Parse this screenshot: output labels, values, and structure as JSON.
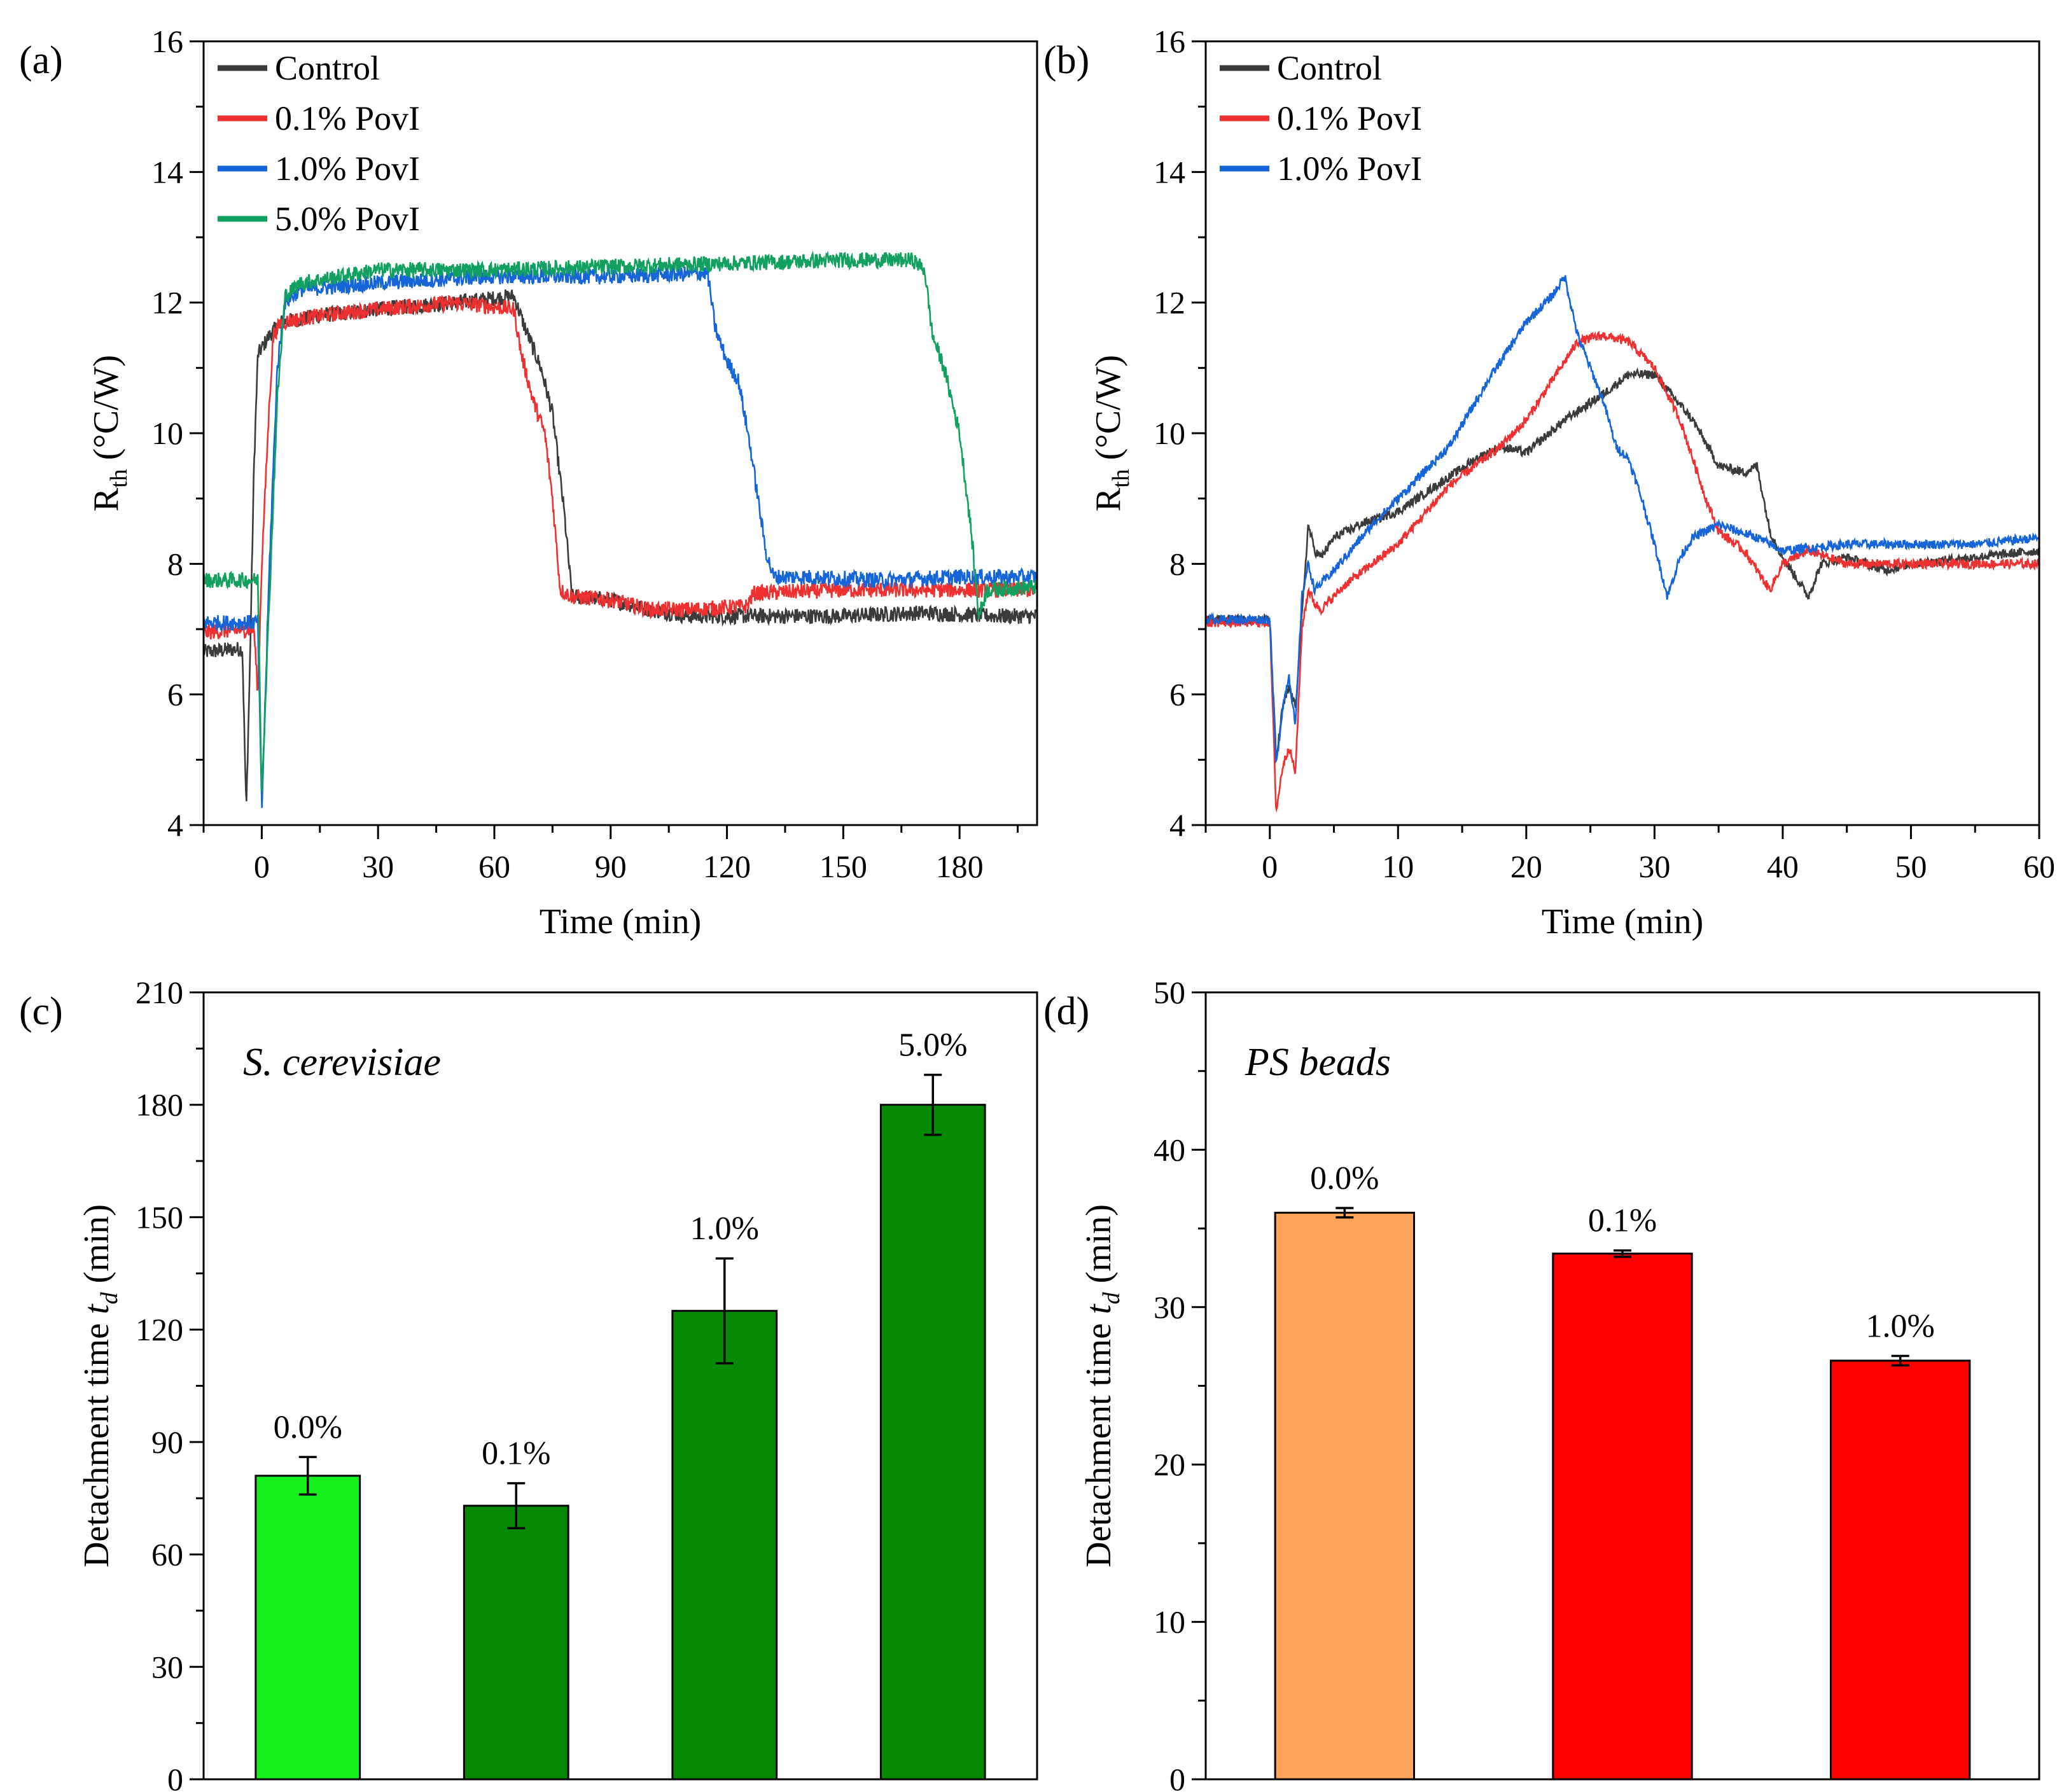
{
  "chart_data": [
    {
      "panel": "(a)",
      "type": "line",
      "xlabel": "Time (min)",
      "ylabel": "R",
      "ylabel_sub": "th",
      "ylabel_unit": " (°C/W)",
      "xlim": [
        -15,
        200
      ],
      "ylim": [
        4,
        16
      ],
      "xticks": [
        0,
        30,
        60,
        90,
        120,
        150,
        180
      ],
      "yticks": [
        4,
        6,
        8,
        10,
        12,
        14,
        16
      ],
      "legend_position": "top-left",
      "series": [
        {
          "name": "Control",
          "color": "#3a3a3a",
          "points": [
            [
              -15,
              6.65
            ],
            [
              -5,
              6.7
            ],
            [
              -4,
              4.2
            ],
            [
              -3,
              6.6
            ],
            [
              -2,
              9.5
            ],
            [
              -1,
              11.2
            ],
            [
              2,
              11.5
            ],
            [
              5,
              11.7
            ],
            [
              15,
              11.8
            ],
            [
              30,
              11.9
            ],
            [
              50,
              12.0
            ],
            [
              65,
              12.1
            ],
            [
              68,
              11.6
            ],
            [
              72,
              11.0
            ],
            [
              75,
              10.3
            ],
            [
              78,
              8.8
            ],
            [
              80,
              7.5
            ],
            [
              90,
              7.45
            ],
            [
              100,
              7.3
            ],
            [
              110,
              7.2
            ],
            [
              130,
              7.2
            ],
            [
              150,
              7.2
            ],
            [
              170,
              7.25
            ],
            [
              190,
              7.2
            ],
            [
              200,
              7.2
            ]
          ]
        },
        {
          "name": "0.1% PovI",
          "color": "#ee3030",
          "points": [
            [
              -15,
              6.95
            ],
            [
              -2,
              7.0
            ],
            [
              -1,
              6.0
            ],
            [
              0,
              8.0
            ],
            [
              2,
              10.5
            ],
            [
              3,
              11.5
            ],
            [
              5,
              11.7
            ],
            [
              15,
              11.8
            ],
            [
              30,
              11.9
            ],
            [
              50,
              12.0
            ],
            [
              65,
              11.9
            ],
            [
              67,
              11.2
            ],
            [
              70,
              10.5
            ],
            [
              73,
              10.0
            ],
            [
              75,
              9.0
            ],
            [
              77,
              7.6
            ],
            [
              80,
              7.5
            ],
            [
              90,
              7.45
            ],
            [
              100,
              7.3
            ],
            [
              110,
              7.3
            ],
            [
              125,
              7.35
            ],
            [
              127,
              7.55
            ],
            [
              150,
              7.6
            ],
            [
              180,
              7.6
            ],
            [
              200,
              7.6
            ]
          ]
        },
        {
          "name": "1.0% PovI",
          "color": "#1565d8",
          "points": [
            [
              -15,
              7.1
            ],
            [
              -1,
              7.1
            ],
            [
              0,
              4.2
            ],
            [
              2,
              8.0
            ],
            [
              4,
              11.0
            ],
            [
              6,
              12.0
            ],
            [
              10,
              12.2
            ],
            [
              30,
              12.3
            ],
            [
              60,
              12.4
            ],
            [
              90,
              12.4
            ],
            [
              115,
              12.45
            ],
            [
              117,
              11.6
            ],
            [
              120,
              11.1
            ],
            [
              123,
              10.8
            ],
            [
              126,
              9.8
            ],
            [
              130,
              8.2
            ],
            [
              132,
              7.8
            ],
            [
              140,
              7.8
            ],
            [
              160,
              7.75
            ],
            [
              180,
              7.8
            ],
            [
              200,
              7.8
            ]
          ]
        },
        {
          "name": "5.0% PovI",
          "color": "#12a060",
          "points": [
            [
              -15,
              7.75
            ],
            [
              -1,
              7.75
            ],
            [
              0,
              4.5
            ],
            [
              2,
              7.5
            ],
            [
              4,
              10.5
            ],
            [
              6,
              12.1
            ],
            [
              10,
              12.3
            ],
            [
              30,
              12.5
            ],
            [
              60,
              12.5
            ],
            [
              90,
              12.55
            ],
            [
              120,
              12.6
            ],
            [
              150,
              12.65
            ],
            [
              168,
              12.65
            ],
            [
              171,
              12.5
            ],
            [
              173,
              11.5
            ],
            [
              176,
              11.0
            ],
            [
              178,
              10.5
            ],
            [
              180,
              10.0
            ],
            [
              183,
              8.5
            ],
            [
              185,
              7.2
            ],
            [
              187,
              7.6
            ],
            [
              200,
              7.65
            ]
          ]
        }
      ]
    },
    {
      "panel": "(b)",
      "type": "line",
      "xlabel": "Time (min)",
      "ylabel": "R",
      "ylabel_sub": "th",
      "ylabel_unit": " (°C/W)",
      "xlim": [
        -5,
        60
      ],
      "ylim": [
        4,
        16
      ],
      "xticks": [
        0,
        10,
        20,
        30,
        40,
        50,
        60
      ],
      "yticks": [
        4,
        6,
        8,
        10,
        12,
        14,
        16
      ],
      "legend_position": "top-left",
      "series": [
        {
          "name": "Control",
          "color": "#3a3a3a",
          "points": [
            [
              -5,
              7.15
            ],
            [
              0,
              7.15
            ],
            [
              0.5,
              5.0
            ],
            [
              1,
              5.8
            ],
            [
              1.5,
              6.1
            ],
            [
              2,
              5.8
            ],
            [
              2.5,
              7.2
            ],
            [
              3,
              8.6
            ],
            [
              3.5,
              8.2
            ],
            [
              4,
              8.1
            ],
            [
              5,
              8.4
            ],
            [
              7,
              8.6
            ],
            [
              10,
              8.8
            ],
            [
              13,
              9.2
            ],
            [
              16,
              9.6
            ],
            [
              18,
              9.8
            ],
            [
              20,
              9.7
            ],
            [
              23,
              10.2
            ],
            [
              26,
              10.6
            ],
            [
              28,
              10.9
            ],
            [
              30,
              10.9
            ],
            [
              33,
              10.2
            ],
            [
              35,
              9.5
            ],
            [
              37,
              9.4
            ],
            [
              38,
              9.5
            ],
            [
              39,
              8.5
            ],
            [
              40,
              8.1
            ],
            [
              41,
              7.8
            ],
            [
              42,
              7.5
            ],
            [
              43,
              8.0
            ],
            [
              45,
              8.1
            ],
            [
              48,
              7.9
            ],
            [
              50,
              8.0
            ],
            [
              55,
              8.1
            ],
            [
              60,
              8.2
            ]
          ]
        },
        {
          "name": "0.1% PovI",
          "color": "#ee3030",
          "points": [
            [
              -5,
              7.1
            ],
            [
              0,
              7.1
            ],
            [
              0.5,
              4.2
            ],
            [
              1,
              4.9
            ],
            [
              1.5,
              5.2
            ],
            [
              2,
              4.8
            ],
            [
              2.5,
              7.0
            ],
            [
              3,
              7.6
            ],
            [
              3.5,
              7.4
            ],
            [
              4,
              7.3
            ],
            [
              6,
              7.7
            ],
            [
              10,
              8.3
            ],
            [
              14,
              9.2
            ],
            [
              18,
              9.8
            ],
            [
              20,
              10.2
            ],
            [
              22,
              10.8
            ],
            [
              24,
              11.4
            ],
            [
              26,
              11.5
            ],
            [
              28,
              11.4
            ],
            [
              30,
              11.0
            ],
            [
              32,
              10.2
            ],
            [
              34,
              9.0
            ],
            [
              35,
              8.5
            ],
            [
              37,
              8.2
            ],
            [
              39,
              7.6
            ],
            [
              40,
              8.0
            ],
            [
              42,
              8.2
            ],
            [
              45,
              8.0
            ],
            [
              50,
              8.0
            ],
            [
              55,
              8.0
            ],
            [
              60,
              8.0
            ]
          ]
        },
        {
          "name": "1.0% PovI",
          "color": "#1565d8",
          "points": [
            [
              -5,
              7.15
            ],
            [
              0,
              7.15
            ],
            [
              0.5,
              4.9
            ],
            [
              1,
              5.8
            ],
            [
              1.5,
              6.3
            ],
            [
              2,
              5.5
            ],
            [
              2.5,
              7.5
            ],
            [
              3,
              8.0
            ],
            [
              3.5,
              7.6
            ],
            [
              5,
              7.9
            ],
            [
              8,
              8.6
            ],
            [
              11,
              9.2
            ],
            [
              14,
              9.8
            ],
            [
              17,
              10.8
            ],
            [
              20,
              11.7
            ],
            [
              22,
              12.1
            ],
            [
              23,
              12.4
            ],
            [
              24,
              11.5
            ],
            [
              25,
              11.0
            ],
            [
              26,
              10.5
            ],
            [
              27,
              9.8
            ],
            [
              28,
              9.6
            ],
            [
              29,
              9.0
            ],
            [
              30,
              8.3
            ],
            [
              31,
              7.5
            ],
            [
              32,
              8.1
            ],
            [
              33,
              8.4
            ],
            [
              35,
              8.6
            ],
            [
              38,
              8.4
            ],
            [
              40,
              8.2
            ],
            [
              45,
              8.3
            ],
            [
              50,
              8.3
            ],
            [
              55,
              8.3
            ],
            [
              60,
              8.4
            ]
          ]
        }
      ]
    },
    {
      "panel": "(c)",
      "type": "bar",
      "annotation": "S. cerevisiae",
      "ylabel": "Detachment time ",
      "ylabel_var": "t",
      "ylabel_sub": "d",
      "ylabel_unit": " (min)",
      "ylim": [
        0,
        210
      ],
      "yticks": [
        0,
        30,
        60,
        90,
        120,
        150,
        180,
        210
      ],
      "categories": [
        "0.0%",
        "0.1%",
        "1.0%",
        "5.0%"
      ],
      "values": [
        81,
        73,
        125,
        180
      ],
      "errors": [
        5,
        6,
        14,
        8
      ],
      "colors": [
        "#16f01c",
        "#068a06",
        "#068a06",
        "#068a06"
      ]
    },
    {
      "panel": "(d)",
      "type": "bar",
      "annotation": "PS beads",
      "ylabel": "Detachment time ",
      "ylabel_var": "t",
      "ylabel_sub": "d",
      "ylabel_unit": " (min)",
      "ylim": [
        0,
        50
      ],
      "yticks": [
        0,
        10,
        20,
        30,
        40,
        50
      ],
      "categories": [
        "0.0%",
        "0.1%",
        "1.0%"
      ],
      "values": [
        36.0,
        33.4,
        26.6
      ],
      "errors": [
        0.3,
        0.2,
        0.3
      ],
      "colors": [
        "#ffa65c",
        "#ff0000",
        "#ff0000"
      ]
    }
  ]
}
